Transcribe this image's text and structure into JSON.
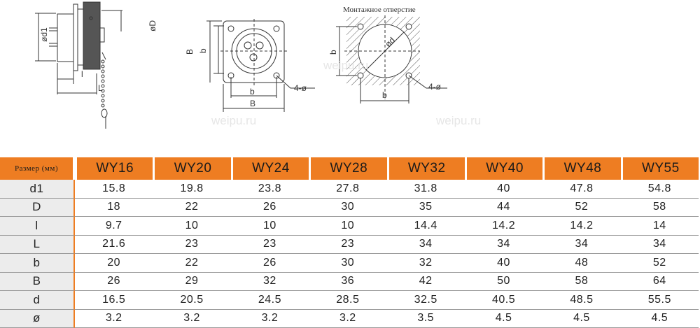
{
  "drawing": {
    "mount_hole_title": "Монтажное отверстие",
    "side_labels": {
      "d1": "ød1",
      "D": "øD",
      "l": "l",
      "L": "L"
    },
    "front_labels": {
      "B": "B",
      "b": "b",
      "b_bottom": "b",
      "B_bottom": "B",
      "holes": "4-ø"
    },
    "cutout_labels": {
      "d": "ød",
      "b": "b",
      "b_bottom": "b",
      "holes": "4-ø"
    }
  },
  "watermark": "weipu.ru",
  "table": {
    "header_label": "Размер (мм)",
    "columns": [
      "WY16",
      "WY20",
      "WY24",
      "WY28",
      "WY32",
      "WY40",
      "WY48",
      "WY55"
    ],
    "rows": [
      {
        "label": "d1",
        "values": [
          "15.8",
          "19.8",
          "23.8",
          "27.8",
          "31.8",
          "40",
          "47.8",
          "54.8"
        ]
      },
      {
        "label": "D",
        "values": [
          "18",
          "22",
          "26",
          "30",
          "35",
          "44",
          "52",
          "58"
        ]
      },
      {
        "label": "l",
        "values": [
          "9.7",
          "10",
          "10",
          "10",
          "14.4",
          "14.2",
          "14.2",
          "14"
        ]
      },
      {
        "label": "L",
        "values": [
          "21.6",
          "23",
          "23",
          "23",
          "34",
          "34",
          "34",
          "34"
        ]
      },
      {
        "label": "b",
        "values": [
          "20",
          "22",
          "26",
          "30",
          "32",
          "40",
          "48",
          "52"
        ]
      },
      {
        "label": "B",
        "values": [
          "26",
          "29",
          "32",
          "36",
          "42",
          "50",
          "58",
          "64"
        ]
      },
      {
        "label": "d",
        "values": [
          "16.5",
          "20.5",
          "24.5",
          "28.5",
          "32.5",
          "40.5",
          "48.5",
          "55.5"
        ]
      },
      {
        "label": "ø",
        "values": [
          "3.2",
          "3.2",
          "3.2",
          "3.2",
          "3.5",
          "4.5",
          "4.5",
          "4.5"
        ]
      }
    ]
  }
}
